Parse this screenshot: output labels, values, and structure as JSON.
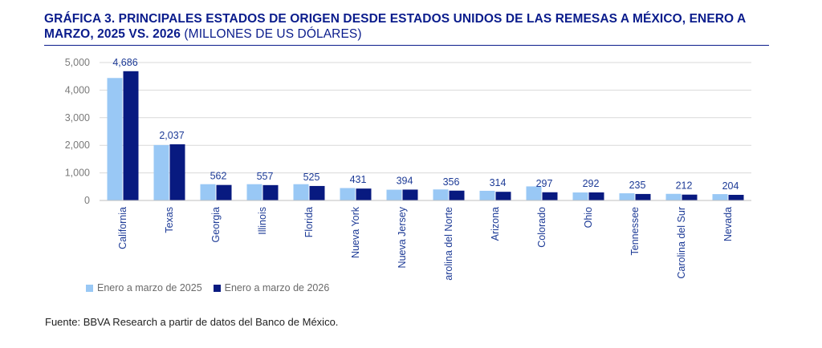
{
  "header": {
    "title": "GRÁFICA 3. PRINCIPALES ESTADOS DE ORIGEN DESDE ESTADOS UNIDOS DE LAS REMESAS A MÉXICO, ENERO A MARZO, 2025 VS. 2026",
    "subtitle": "(MILLONES DE US DÓLARES)"
  },
  "colors": {
    "title": "#0a1c8c",
    "series_2025": "#99c8f5",
    "series_2026": "#081a80",
    "grid": "#d9d9d9",
    "labels": "#1c3a96"
  },
  "chart_data": {
    "type": "bar",
    "categories": [
      "California",
      "Texas",
      "Georgia",
      "Illinois",
      "Florida",
      "Nueva York",
      "Nueva Jersey",
      "Carolina del Norte",
      "Arizona",
      "Colorado",
      "Ohio",
      "Tennessee",
      "Carolina del Sur",
      "Nevada"
    ],
    "series": [
      {
        "name": "Enero a marzo de 2025",
        "values": [
          4440,
          2010,
          590,
          590,
          590,
          450,
          390,
          400,
          350,
          510,
          290,
          260,
          240,
          230
        ]
      },
      {
        "name": "Enero a marzo de 2026",
        "values": [
          4686,
          2037,
          562,
          557,
          525,
          431,
          394,
          356,
          314,
          297,
          292,
          235,
          212,
          204
        ]
      }
    ],
    "data_labels": [
      "4,686",
      "2,037",
      "562",
      "557",
      "525",
      "431",
      "394",
      "356",
      "314",
      "297",
      "292",
      "235",
      "212",
      "204"
    ],
    "y_ticks": [
      "0",
      "1,000",
      "2,000",
      "3,000",
      "4,000",
      "5,000"
    ],
    "ylim": [
      0,
      5000
    ],
    "grid": true,
    "legend_position": "bottom-left",
    "xlabel": "",
    "ylabel": ""
  },
  "footer": {
    "source": "Fuente: BBVA Research a partir de datos del Banco de México."
  }
}
